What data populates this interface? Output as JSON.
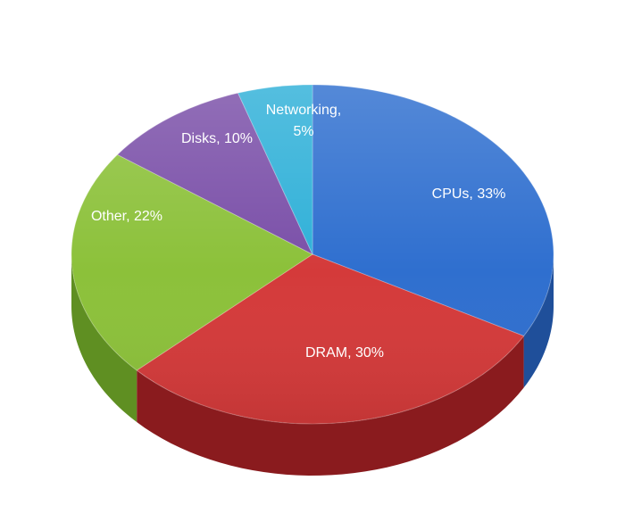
{
  "chart_data": {
    "type": "pie",
    "style": "3d",
    "title": "",
    "start_angle_deg": 0,
    "direction": "clockwise",
    "slices": [
      {
        "name": "CPUs",
        "value": 33,
        "label": "CPUs, 33%",
        "color": "#2f6fcf",
        "side_color": "#1f4f9a"
      },
      {
        "name": "DRAM",
        "value": 30,
        "label": "DRAM, 30%",
        "color": "#d43a3a",
        "side_color": "#8a1b1e"
      },
      {
        "name": "Other",
        "value": 22,
        "label": "Other, 22%",
        "color": "#8cc13a",
        "side_color": "#5f8f22"
      },
      {
        "name": "Disks",
        "value": 10,
        "label": "Disks, 10%",
        "color": "#7a4fa8",
        "side_color": "#553479"
      },
      {
        "name": "Networking",
        "value": 5,
        "label_lines": [
          "Networking,",
          "5%"
        ],
        "color": "#2fb0d8",
        "side_color": "#1f7f9e"
      }
    ]
  }
}
